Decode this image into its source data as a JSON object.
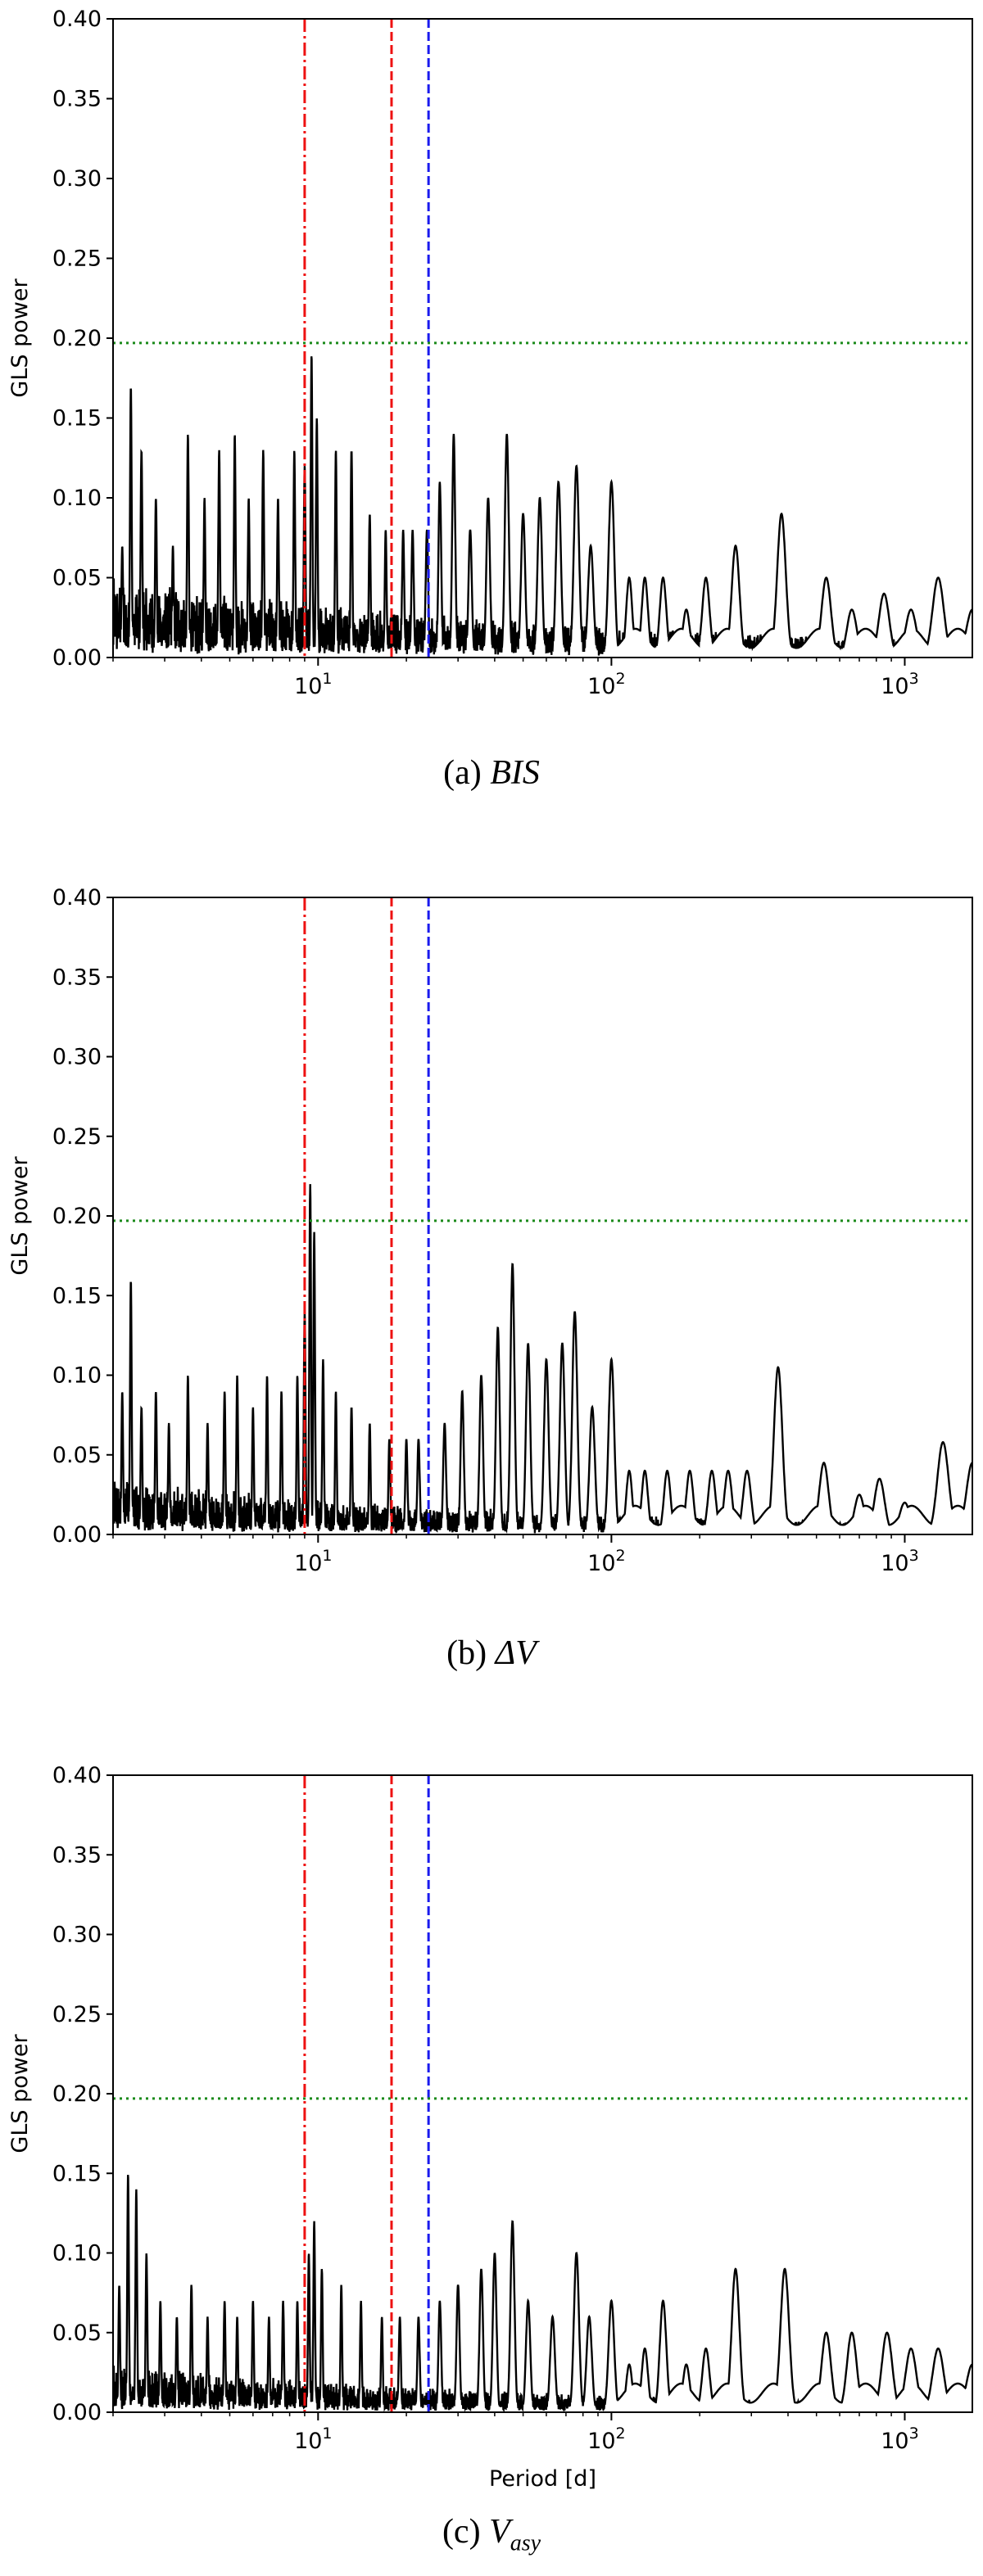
{
  "figure": {
    "captions": [
      {
        "prefix": "(a) ",
        "symbol": "BIS",
        "subscript": ""
      },
      {
        "prefix": "(b) ",
        "symbol": "ΔV",
        "subscript": ""
      },
      {
        "prefix": "(c) ",
        "symbol": "V",
        "subscript": "asy"
      }
    ]
  },
  "colors": {
    "curve": "#000000",
    "line_dashdot": "#ee1111",
    "line_dashed_red": "#ee1111",
    "line_dashed_blue": "#1a1aee",
    "threshold": "#1a8a1a"
  },
  "chart_data": [
    {
      "type": "line",
      "panel": "a",
      "xscale": "log",
      "xlim": [
        2,
        1700
      ],
      "ylim": [
        0,
        0.4
      ],
      "xlabel": "",
      "ylabel": "GLS power",
      "yticks": [
        0.0,
        0.05,
        0.1,
        0.15,
        0.2,
        0.25,
        0.3,
        0.35,
        0.4
      ],
      "ytick_labels": [
        "0.00",
        "0.05",
        "0.10",
        "0.15",
        "0.20",
        "0.25",
        "0.30",
        "0.35",
        "0.40"
      ],
      "xticks": [
        10,
        100,
        1000
      ],
      "xtick_labels": [
        {
          "base": "10",
          "exp": "1"
        },
        {
          "base": "10",
          "exp": "2"
        },
        {
          "base": "10",
          "exp": "3"
        }
      ],
      "threshold": 0.197,
      "vlines": [
        {
          "x": 9.0,
          "style": "dashdot",
          "color": "red"
        },
        {
          "x": 17.8,
          "style": "dashed",
          "color": "red"
        },
        {
          "x": 23.8,
          "style": "dashed",
          "color": "blue"
        }
      ],
      "noise_base": 0.05,
      "noise_decay": 0.55,
      "peaks": [
        [
          2.15,
          0.07
        ],
        [
          2.3,
          0.17
        ],
        [
          2.5,
          0.13
        ],
        [
          2.8,
          0.1
        ],
        [
          3.2,
          0.07
        ],
        [
          3.6,
          0.14
        ],
        [
          4.1,
          0.1
        ],
        [
          4.6,
          0.13
        ],
        [
          5.2,
          0.14
        ],
        [
          5.8,
          0.1
        ],
        [
          6.5,
          0.13
        ],
        [
          7.3,
          0.1
        ],
        [
          8.3,
          0.13
        ],
        [
          9.0,
          0.12
        ],
        [
          9.5,
          0.19
        ],
        [
          9.9,
          0.15
        ],
        [
          11.5,
          0.13
        ],
        [
          13.0,
          0.13
        ],
        [
          15.0,
          0.09
        ],
        [
          17.0,
          0.08
        ],
        [
          19.5,
          0.08
        ],
        [
          21.0,
          0.08
        ],
        [
          23.5,
          0.08
        ],
        [
          26.0,
          0.11
        ],
        [
          29.0,
          0.14
        ],
        [
          33.0,
          0.08
        ],
        [
          38.0,
          0.1
        ],
        [
          44.0,
          0.14
        ],
        [
          50.0,
          0.09
        ],
        [
          57.0,
          0.1
        ],
        [
          66.0,
          0.11
        ],
        [
          76.0,
          0.12
        ],
        [
          85.0,
          0.07
        ],
        [
          100.0,
          0.11
        ],
        [
          115.0,
          0.05
        ],
        [
          130.0,
          0.05
        ],
        [
          150.0,
          0.05
        ],
        [
          180.0,
          0.03
        ],
        [
          210.0,
          0.05
        ],
        [
          265.0,
          0.07
        ],
        [
          380.0,
          0.09
        ],
        [
          540.0,
          0.05
        ],
        [
          660.0,
          0.03
        ],
        [
          850.0,
          0.04
        ],
        [
          1050.0,
          0.03
        ],
        [
          1300.0,
          0.05
        ],
        [
          1700.0,
          0.03
        ]
      ]
    },
    {
      "type": "line",
      "panel": "b",
      "xscale": "log",
      "xlim": [
        2,
        1700
      ],
      "ylim": [
        0,
        0.4
      ],
      "xlabel": "",
      "ylabel": "GLS power",
      "yticks": [
        0.0,
        0.05,
        0.1,
        0.15,
        0.2,
        0.25,
        0.3,
        0.35,
        0.4
      ],
      "ytick_labels": [
        "0.00",
        "0.05",
        "0.10",
        "0.15",
        "0.20",
        "0.25",
        "0.30",
        "0.35",
        "0.40"
      ],
      "xticks": [
        10,
        100,
        1000
      ],
      "xtick_labels": [
        {
          "base": "10",
          "exp": "1"
        },
        {
          "base": "10",
          "exp": "2"
        },
        {
          "base": "10",
          "exp": "3"
        }
      ],
      "threshold": 0.197,
      "vlines": [
        {
          "x": 9.0,
          "style": "dashdot",
          "color": "red"
        },
        {
          "x": 17.8,
          "style": "dashed",
          "color": "red"
        },
        {
          "x": 23.8,
          "style": "dashed",
          "color": "blue"
        }
      ],
      "noise_base": 0.035,
      "noise_decay": 0.6,
      "peaks": [
        [
          2.15,
          0.09
        ],
        [
          2.3,
          0.16
        ],
        [
          2.5,
          0.08
        ],
        [
          2.8,
          0.09
        ],
        [
          3.1,
          0.07
        ],
        [
          3.6,
          0.1
        ],
        [
          4.2,
          0.07
        ],
        [
          4.8,
          0.09
        ],
        [
          5.3,
          0.1
        ],
        [
          6.0,
          0.08
        ],
        [
          6.7,
          0.1
        ],
        [
          7.5,
          0.09
        ],
        [
          8.5,
          0.1
        ],
        [
          9.0,
          0.14
        ],
        [
          9.4,
          0.22
        ],
        [
          9.7,
          0.19
        ],
        [
          10.4,
          0.11
        ],
        [
          11.5,
          0.09
        ],
        [
          13.0,
          0.08
        ],
        [
          15.0,
          0.07
        ],
        [
          17.5,
          0.06
        ],
        [
          20.0,
          0.06
        ],
        [
          22.0,
          0.06
        ],
        [
          27.0,
          0.07
        ],
        [
          31.0,
          0.09
        ],
        [
          36.0,
          0.1
        ],
        [
          41.0,
          0.13
        ],
        [
          46.0,
          0.17
        ],
        [
          52.0,
          0.12
        ],
        [
          60.0,
          0.11
        ],
        [
          68.0,
          0.12
        ],
        [
          75.0,
          0.14
        ],
        [
          86.0,
          0.08
        ],
        [
          100.0,
          0.11
        ],
        [
          115.0,
          0.04
        ],
        [
          130.0,
          0.04
        ],
        [
          155.0,
          0.04
        ],
        [
          185.0,
          0.04
        ],
        [
          220.0,
          0.04
        ],
        [
          250.0,
          0.04
        ],
        [
          290.0,
          0.04
        ],
        [
          370.0,
          0.105
        ],
        [
          530.0,
          0.045
        ],
        [
          700.0,
          0.025
        ],
        [
          820.0,
          0.035
        ],
        [
          1000.0,
          0.02
        ],
        [
          1350.0,
          0.058
        ],
        [
          1700.0,
          0.045
        ]
      ]
    },
    {
      "type": "line",
      "panel": "c",
      "xscale": "log",
      "xlim": [
        2,
        1700
      ],
      "ylim": [
        0,
        0.4
      ],
      "xlabel": "Period [d]",
      "ylabel": "GLS power",
      "yticks": [
        0.0,
        0.05,
        0.1,
        0.15,
        0.2,
        0.25,
        0.3,
        0.35,
        0.4
      ],
      "ytick_labels": [
        "0.00",
        "0.05",
        "0.10",
        "0.15",
        "0.20",
        "0.25",
        "0.30",
        "0.35",
        "0.40"
      ],
      "xticks": [
        10,
        100,
        1000
      ],
      "xtick_labels": [
        {
          "base": "10",
          "exp": "1"
        },
        {
          "base": "10",
          "exp": "2"
        },
        {
          "base": "10",
          "exp": "3"
        }
      ],
      "threshold": 0.197,
      "vlines": [
        {
          "x": 9.0,
          "style": "dashdot",
          "color": "red"
        },
        {
          "x": 17.8,
          "style": "dashed",
          "color": "red"
        },
        {
          "x": 23.8,
          "style": "dashed",
          "color": "blue"
        }
      ],
      "noise_base": 0.03,
      "noise_decay": 0.6,
      "peaks": [
        [
          2.1,
          0.08
        ],
        [
          2.25,
          0.15
        ],
        [
          2.4,
          0.14
        ],
        [
          2.6,
          0.1
        ],
        [
          2.9,
          0.07
        ],
        [
          3.3,
          0.06
        ],
        [
          3.7,
          0.08
        ],
        [
          4.2,
          0.06
        ],
        [
          4.8,
          0.07
        ],
        [
          5.3,
          0.06
        ],
        [
          6.0,
          0.07
        ],
        [
          6.8,
          0.06
        ],
        [
          7.6,
          0.07
        ],
        [
          8.5,
          0.07
        ],
        [
          9.3,
          0.1
        ],
        [
          9.7,
          0.12
        ],
        [
          10.3,
          0.09
        ],
        [
          12.0,
          0.08
        ],
        [
          14.0,
          0.07
        ],
        [
          16.5,
          0.06
        ],
        [
          19.0,
          0.06
        ],
        [
          22.0,
          0.06
        ],
        [
          26.0,
          0.07
        ],
        [
          30.0,
          0.08
        ],
        [
          36.0,
          0.09
        ],
        [
          40.0,
          0.1
        ],
        [
          46.0,
          0.12
        ],
        [
          52.0,
          0.07
        ],
        [
          63.0,
          0.06
        ],
        [
          76.0,
          0.1
        ],
        [
          84.0,
          0.06
        ],
        [
          100.0,
          0.07
        ],
        [
          115.0,
          0.03
        ],
        [
          130.0,
          0.04
        ],
        [
          150.0,
          0.07
        ],
        [
          180.0,
          0.03
        ],
        [
          210.0,
          0.04
        ],
        [
          265.0,
          0.09
        ],
        [
          390.0,
          0.09
        ],
        [
          540.0,
          0.05
        ],
        [
          660.0,
          0.05
        ],
        [
          870.0,
          0.05
        ],
        [
          1050.0,
          0.04
        ],
        [
          1300.0,
          0.04
        ],
        [
          1700.0,
          0.03
        ]
      ]
    }
  ]
}
